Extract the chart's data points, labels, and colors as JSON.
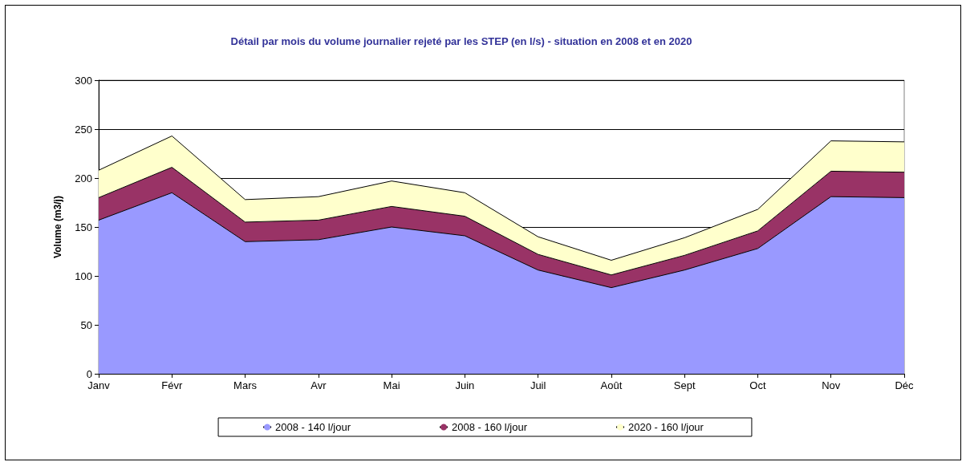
{
  "chart_data": {
    "type": "area",
    "title": "Détail par mois du volume journalier rejeté par les STEP (en l/s) - situation en 2008 et en 2020",
    "ylabel": "Volume (m3/j)",
    "categories": [
      "Janv",
      "Févr",
      "Mars",
      "Avr",
      "Mai",
      "Juin",
      "Juil",
      "Août",
      "Sept",
      "Oct",
      "Nov",
      "Déc"
    ],
    "stacked": true,
    "series": [
      {
        "name": "2008 - 140 l/jour",
        "color": "#9999ff",
        "values": [
          157,
          185,
          135,
          137,
          150,
          141,
          106,
          88,
          106,
          128,
          181,
          180
        ]
      },
      {
        "name": "2008 - 160 l/jour",
        "color": "#993366",
        "values": [
          23,
          26,
          20,
          20,
          21,
          20,
          16,
          13,
          15,
          18,
          26,
          26
        ]
      },
      {
        "name": "2020 - 160 l/jour",
        "color": "#ffffcc",
        "values": [
          28,
          32,
          23,
          24,
          26,
          24,
          18,
          15,
          18,
          22,
          31,
          31
        ]
      }
    ],
    "ylim": [
      0,
      300
    ],
    "yticks": [
      0,
      50,
      100,
      150,
      200,
      250,
      300
    ],
    "grid": "y",
    "legend": "bottom",
    "marker": "none"
  }
}
